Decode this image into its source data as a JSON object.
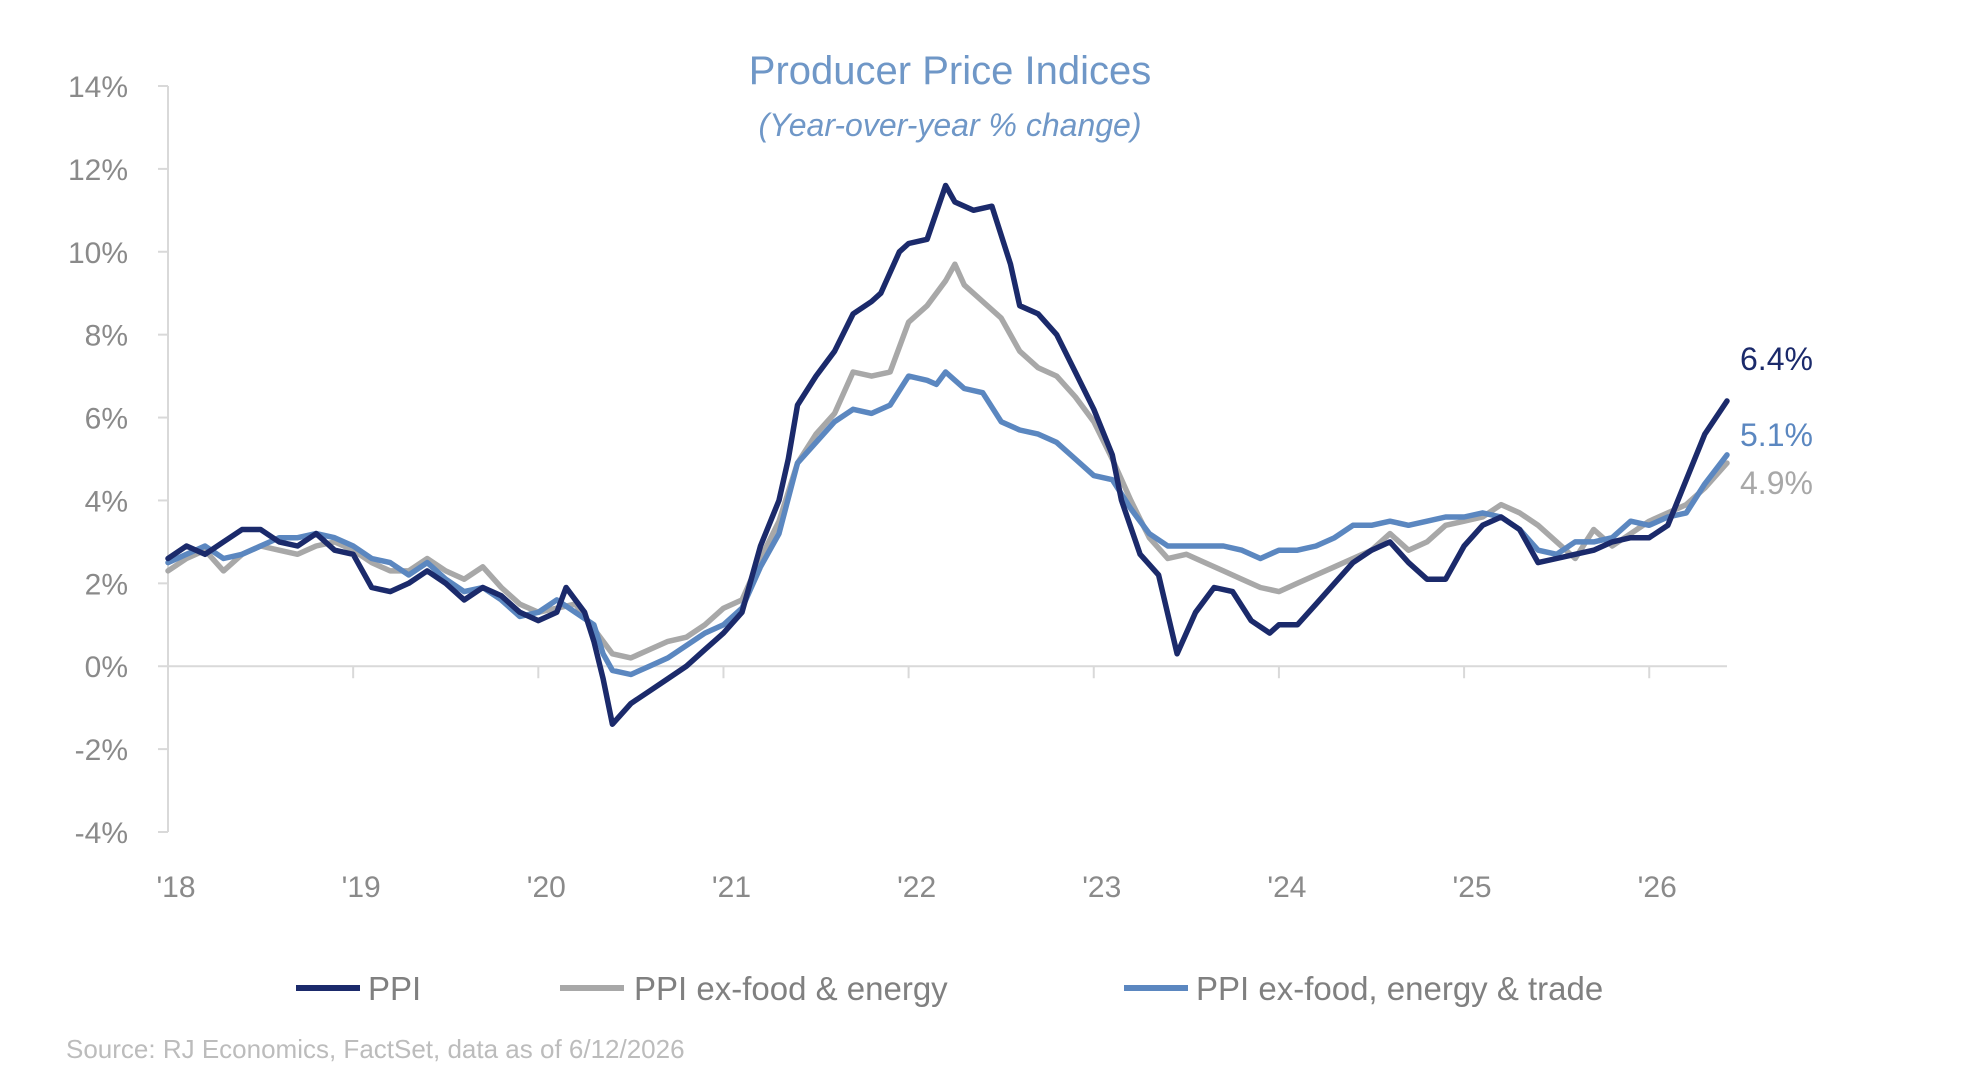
{
  "chart_data": {
    "type": "line",
    "title": "Producer Price Indices",
    "subtitle": "(Year-over-year % change)",
    "xlabel": "",
    "ylabel": "",
    "y_ticks": [
      "14%",
      "12%",
      "10%",
      "8%",
      "6%",
      "4%",
      "2%",
      "0%",
      "-2%",
      "-4%"
    ],
    "ylim": [
      -4,
      14
    ],
    "x_ticks": [
      "'18",
      "'19",
      "'20",
      "'21",
      "'22",
      "'23",
      "'24",
      "'25",
      "'26"
    ],
    "x_tick_years": [
      2018,
      2019,
      2020,
      2021,
      2022,
      2023,
      2024,
      2025,
      2026
    ],
    "xlim": [
      2018.0,
      2026.42
    ],
    "grid": false,
    "legend_position": "bottom",
    "source": "Source: RJ Economics, FactSet, data as of 6/12/2026",
    "series": [
      {
        "name": "PPI",
        "color": "#1b2a6b",
        "end_label": "6.4%",
        "points": [
          [
            2018.0,
            2.6
          ],
          [
            2018.1,
            2.9
          ],
          [
            2018.2,
            2.7
          ],
          [
            2018.3,
            3.0
          ],
          [
            2018.4,
            3.3
          ],
          [
            2018.5,
            3.3
          ],
          [
            2018.6,
            3.0
          ],
          [
            2018.7,
            2.9
          ],
          [
            2018.8,
            3.2
          ],
          [
            2018.9,
            2.8
          ],
          [
            2019.0,
            2.7
          ],
          [
            2019.1,
            1.9
          ],
          [
            2019.2,
            1.8
          ],
          [
            2019.3,
            2.0
          ],
          [
            2019.4,
            2.3
          ],
          [
            2019.5,
            2.0
          ],
          [
            2019.6,
            1.6
          ],
          [
            2019.7,
            1.9
          ],
          [
            2019.8,
            1.7
          ],
          [
            2019.9,
            1.3
          ],
          [
            2020.0,
            1.1
          ],
          [
            2020.1,
            1.3
          ],
          [
            2020.15,
            1.9
          ],
          [
            2020.25,
            1.3
          ],
          [
            2020.3,
            0.6
          ],
          [
            2020.35,
            -0.3
          ],
          [
            2020.4,
            -1.4
          ],
          [
            2020.5,
            -0.9
          ],
          [
            2020.6,
            -0.6
          ],
          [
            2020.7,
            -0.3
          ],
          [
            2020.8,
            0.0
          ],
          [
            2020.9,
            0.4
          ],
          [
            2021.0,
            0.8
          ],
          [
            2021.1,
            1.3
          ],
          [
            2021.2,
            2.9
          ],
          [
            2021.3,
            4.0
          ],
          [
            2021.35,
            5.0
          ],
          [
            2021.4,
            6.3
          ],
          [
            2021.5,
            7.0
          ],
          [
            2021.6,
            7.6
          ],
          [
            2021.7,
            8.5
          ],
          [
            2021.8,
            8.8
          ],
          [
            2021.85,
            9.0
          ],
          [
            2021.95,
            10.0
          ],
          [
            2022.0,
            10.2
          ],
          [
            2022.1,
            10.3
          ],
          [
            2022.2,
            11.6
          ],
          [
            2022.25,
            11.2
          ],
          [
            2022.35,
            11.0
          ],
          [
            2022.45,
            11.1
          ],
          [
            2022.55,
            9.7
          ],
          [
            2022.6,
            8.7
          ],
          [
            2022.7,
            8.5
          ],
          [
            2022.8,
            8.0
          ],
          [
            2022.9,
            7.1
          ],
          [
            2023.0,
            6.2
          ],
          [
            2023.1,
            5.1
          ],
          [
            2023.15,
            4.0
          ],
          [
            2023.25,
            2.7
          ],
          [
            2023.35,
            2.2
          ],
          [
            2023.45,
            0.3
          ],
          [
            2023.55,
            1.3
          ],
          [
            2023.65,
            1.9
          ],
          [
            2023.75,
            1.8
          ],
          [
            2023.85,
            1.1
          ],
          [
            2023.95,
            0.8
          ],
          [
            2024.0,
            1.0
          ],
          [
            2024.1,
            1.0
          ],
          [
            2024.2,
            1.5
          ],
          [
            2024.3,
            2.0
          ],
          [
            2024.4,
            2.5
          ],
          [
            2024.5,
            2.8
          ],
          [
            2024.6,
            3.0
          ],
          [
            2024.7,
            2.5
          ],
          [
            2024.8,
            2.1
          ],
          [
            2024.9,
            2.1
          ],
          [
            2025.0,
            2.9
          ],
          [
            2025.1,
            3.4
          ],
          [
            2025.2,
            3.6
          ],
          [
            2025.3,
            3.3
          ],
          [
            2025.4,
            2.5
          ],
          [
            2025.5,
            2.6
          ],
          [
            2025.6,
            2.7
          ],
          [
            2025.7,
            2.8
          ],
          [
            2025.8,
            3.0
          ],
          [
            2025.9,
            3.1
          ],
          [
            2026.0,
            3.1
          ],
          [
            2026.1,
            3.4
          ],
          [
            2026.2,
            4.5
          ],
          [
            2026.3,
            5.6
          ],
          [
            2026.42,
            6.4
          ]
        ]
      },
      {
        "name": "PPI ex-food & energy",
        "color": "#a8a8a8",
        "end_label": "4.9%",
        "points": [
          [
            2018.0,
            2.3
          ],
          [
            2018.1,
            2.6
          ],
          [
            2018.2,
            2.8
          ],
          [
            2018.3,
            2.3
          ],
          [
            2018.4,
            2.7
          ],
          [
            2018.5,
            2.9
          ],
          [
            2018.6,
            2.8
          ],
          [
            2018.7,
            2.7
          ],
          [
            2018.8,
            2.9
          ],
          [
            2018.9,
            3.0
          ],
          [
            2019.0,
            2.8
          ],
          [
            2019.1,
            2.5
          ],
          [
            2019.2,
            2.3
          ],
          [
            2019.3,
            2.3
          ],
          [
            2019.4,
            2.6
          ],
          [
            2019.5,
            2.3
          ],
          [
            2019.6,
            2.1
          ],
          [
            2019.7,
            2.4
          ],
          [
            2019.8,
            1.9
          ],
          [
            2019.9,
            1.5
          ],
          [
            2020.0,
            1.3
          ],
          [
            2020.1,
            1.4
          ],
          [
            2020.2,
            1.5
          ],
          [
            2020.3,
            0.9
          ],
          [
            2020.4,
            0.3
          ],
          [
            2020.5,
            0.2
          ],
          [
            2020.6,
            0.4
          ],
          [
            2020.7,
            0.6
          ],
          [
            2020.8,
            0.7
          ],
          [
            2020.9,
            1.0
          ],
          [
            2021.0,
            1.4
          ],
          [
            2021.1,
            1.6
          ],
          [
            2021.2,
            2.6
          ],
          [
            2021.3,
            3.5
          ],
          [
            2021.4,
            4.9
          ],
          [
            2021.5,
            5.6
          ],
          [
            2021.6,
            6.1
          ],
          [
            2021.7,
            7.1
          ],
          [
            2021.8,
            7.0
          ],
          [
            2021.9,
            7.1
          ],
          [
            2022.0,
            8.3
          ],
          [
            2022.1,
            8.7
          ],
          [
            2022.2,
            9.3
          ],
          [
            2022.25,
            9.7
          ],
          [
            2022.3,
            9.2
          ],
          [
            2022.4,
            8.8
          ],
          [
            2022.5,
            8.4
          ],
          [
            2022.6,
            7.6
          ],
          [
            2022.7,
            7.2
          ],
          [
            2022.8,
            7.0
          ],
          [
            2022.9,
            6.5
          ],
          [
            2023.0,
            5.9
          ],
          [
            2023.1,
            5.0
          ],
          [
            2023.2,
            4.0
          ],
          [
            2023.3,
            3.1
          ],
          [
            2023.4,
            2.6
          ],
          [
            2023.5,
            2.7
          ],
          [
            2023.6,
            2.5
          ],
          [
            2023.7,
            2.3
          ],
          [
            2023.8,
            2.1
          ],
          [
            2023.9,
            1.9
          ],
          [
            2024.0,
            1.8
          ],
          [
            2024.1,
            2.0
          ],
          [
            2024.2,
            2.2
          ],
          [
            2024.3,
            2.4
          ],
          [
            2024.4,
            2.6
          ],
          [
            2024.5,
            2.8
          ],
          [
            2024.6,
            3.2
          ],
          [
            2024.7,
            2.8
          ],
          [
            2024.8,
            3.0
          ],
          [
            2024.9,
            3.4
          ],
          [
            2025.0,
            3.5
          ],
          [
            2025.1,
            3.6
          ],
          [
            2025.2,
            3.9
          ],
          [
            2025.3,
            3.7
          ],
          [
            2025.4,
            3.4
          ],
          [
            2025.5,
            3.0
          ],
          [
            2025.6,
            2.6
          ],
          [
            2025.7,
            3.3
          ],
          [
            2025.8,
            2.9
          ],
          [
            2025.9,
            3.2
          ],
          [
            2026.0,
            3.5
          ],
          [
            2026.1,
            3.7
          ],
          [
            2026.2,
            3.9
          ],
          [
            2026.3,
            4.3
          ],
          [
            2026.42,
            4.9
          ]
        ]
      },
      {
        "name": "PPI ex-food, energy & trade",
        "color": "#5b87c0",
        "end_label": "5.1%",
        "points": [
          [
            2018.0,
            2.5
          ],
          [
            2018.1,
            2.7
          ],
          [
            2018.2,
            2.9
          ],
          [
            2018.3,
            2.6
          ],
          [
            2018.4,
            2.7
          ],
          [
            2018.5,
            2.9
          ],
          [
            2018.6,
            3.1
          ],
          [
            2018.7,
            3.1
          ],
          [
            2018.8,
            3.2
          ],
          [
            2018.9,
            3.1
          ],
          [
            2019.0,
            2.9
          ],
          [
            2019.1,
            2.6
          ],
          [
            2019.2,
            2.5
          ],
          [
            2019.3,
            2.2
          ],
          [
            2019.4,
            2.5
          ],
          [
            2019.5,
            2.1
          ],
          [
            2019.6,
            1.8
          ],
          [
            2019.7,
            1.9
          ],
          [
            2019.8,
            1.6
          ],
          [
            2019.9,
            1.2
          ],
          [
            2020.0,
            1.3
          ],
          [
            2020.1,
            1.6
          ],
          [
            2020.2,
            1.3
          ],
          [
            2020.3,
            1.0
          ],
          [
            2020.35,
            0.3
          ],
          [
            2020.4,
            -0.1
          ],
          [
            2020.5,
            -0.2
          ],
          [
            2020.6,
            0.0
          ],
          [
            2020.7,
            0.2
          ],
          [
            2020.8,
            0.5
          ],
          [
            2020.9,
            0.8
          ],
          [
            2021.0,
            1.0
          ],
          [
            2021.1,
            1.4
          ],
          [
            2021.2,
            2.4
          ],
          [
            2021.3,
            3.2
          ],
          [
            2021.4,
            4.9
          ],
          [
            2021.5,
            5.4
          ],
          [
            2021.6,
            5.9
          ],
          [
            2021.7,
            6.2
          ],
          [
            2021.8,
            6.1
          ],
          [
            2021.9,
            6.3
          ],
          [
            2022.0,
            7.0
          ],
          [
            2022.1,
            6.9
          ],
          [
            2022.15,
            6.8
          ],
          [
            2022.2,
            7.1
          ],
          [
            2022.3,
            6.7
          ],
          [
            2022.4,
            6.6
          ],
          [
            2022.5,
            5.9
          ],
          [
            2022.6,
            5.7
          ],
          [
            2022.7,
            5.6
          ],
          [
            2022.8,
            5.4
          ],
          [
            2022.9,
            5.0
          ],
          [
            2023.0,
            4.6
          ],
          [
            2023.1,
            4.5
          ],
          [
            2023.2,
            3.8
          ],
          [
            2023.3,
            3.2
          ],
          [
            2023.4,
            2.9
          ],
          [
            2023.5,
            2.9
          ],
          [
            2023.6,
            2.9
          ],
          [
            2023.7,
            2.9
          ],
          [
            2023.8,
            2.8
          ],
          [
            2023.9,
            2.6
          ],
          [
            2024.0,
            2.8
          ],
          [
            2024.1,
            2.8
          ],
          [
            2024.2,
            2.9
          ],
          [
            2024.3,
            3.1
          ],
          [
            2024.4,
            3.4
          ],
          [
            2024.5,
            3.4
          ],
          [
            2024.6,
            3.5
          ],
          [
            2024.7,
            3.4
          ],
          [
            2024.8,
            3.5
          ],
          [
            2024.9,
            3.6
          ],
          [
            2025.0,
            3.6
          ],
          [
            2025.1,
            3.7
          ],
          [
            2025.2,
            3.6
          ],
          [
            2025.3,
            3.3
          ],
          [
            2025.4,
            2.8
          ],
          [
            2025.5,
            2.7
          ],
          [
            2025.6,
            3.0
          ],
          [
            2025.7,
            3.0
          ],
          [
            2025.8,
            3.1
          ],
          [
            2025.9,
            3.5
          ],
          [
            2026.0,
            3.4
          ],
          [
            2026.1,
            3.6
          ],
          [
            2026.2,
            3.7
          ],
          [
            2026.3,
            4.4
          ],
          [
            2026.42,
            5.1
          ]
        ]
      }
    ]
  }
}
